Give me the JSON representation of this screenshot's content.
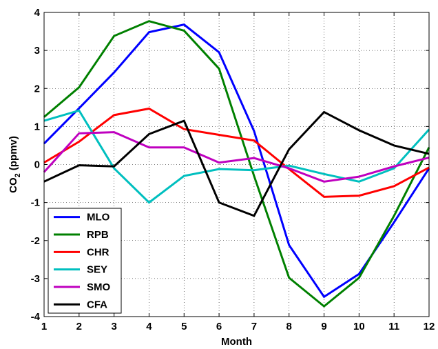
{
  "chart_data": {
    "type": "line",
    "xlabel": "Month",
    "ylabel": {
      "base": "CO",
      "sub": "2",
      "rest": " (ppmv)"
    },
    "xlim": [
      1,
      12
    ],
    "ylim": [
      -4,
      4
    ],
    "x_ticks": [
      1,
      2,
      3,
      4,
      5,
      6,
      7,
      8,
      9,
      10,
      11,
      12
    ],
    "y_ticks": [
      -4,
      -3,
      -2,
      -1,
      0,
      1,
      2,
      3,
      4
    ],
    "grid": true,
    "grid_style": "dotted",
    "legend_position": "bottom-left",
    "x": [
      1,
      2,
      3,
      4,
      5,
      6,
      7,
      8,
      9,
      10,
      11,
      12
    ],
    "series": [
      {
        "name": "MLO",
        "color": "#0000ff",
        "values": [
          0.55,
          1.48,
          2.42,
          3.48,
          3.68,
          2.95,
          0.88,
          -2.12,
          -3.48,
          -2.88,
          -1.52,
          -0.1
        ]
      },
      {
        "name": "RPB",
        "color": "#008000",
        "values": [
          1.25,
          2.03,
          3.38,
          3.77,
          3.52,
          2.52,
          -0.3,
          -2.98,
          -3.73,
          -2.98,
          -1.35,
          0.45
        ]
      },
      {
        "name": "CHR",
        "color": "#ff0000",
        "values": [
          0.05,
          0.6,
          1.3,
          1.47,
          0.93,
          0.78,
          0.63,
          -0.12,
          -0.85,
          -0.82,
          -0.57,
          -0.08
        ]
      },
      {
        "name": "SEY",
        "color": "#00bfbf",
        "values": [
          1.15,
          1.42,
          -0.1,
          -1.0,
          -0.3,
          -0.12,
          -0.15,
          -0.03,
          -0.25,
          -0.45,
          -0.1,
          0.92
        ]
      },
      {
        "name": "SMO",
        "color": "#bf00bf",
        "values": [
          -0.2,
          0.82,
          0.85,
          0.45,
          0.45,
          0.05,
          0.17,
          -0.1,
          -0.45,
          -0.32,
          -0.05,
          0.18
        ]
      },
      {
        "name": "CFA",
        "color": "#000000",
        "values": [
          -0.45,
          -0.02,
          -0.05,
          0.8,
          1.15,
          -1.0,
          -1.35,
          0.4,
          1.38,
          0.9,
          0.5,
          0.28
        ]
      }
    ]
  }
}
